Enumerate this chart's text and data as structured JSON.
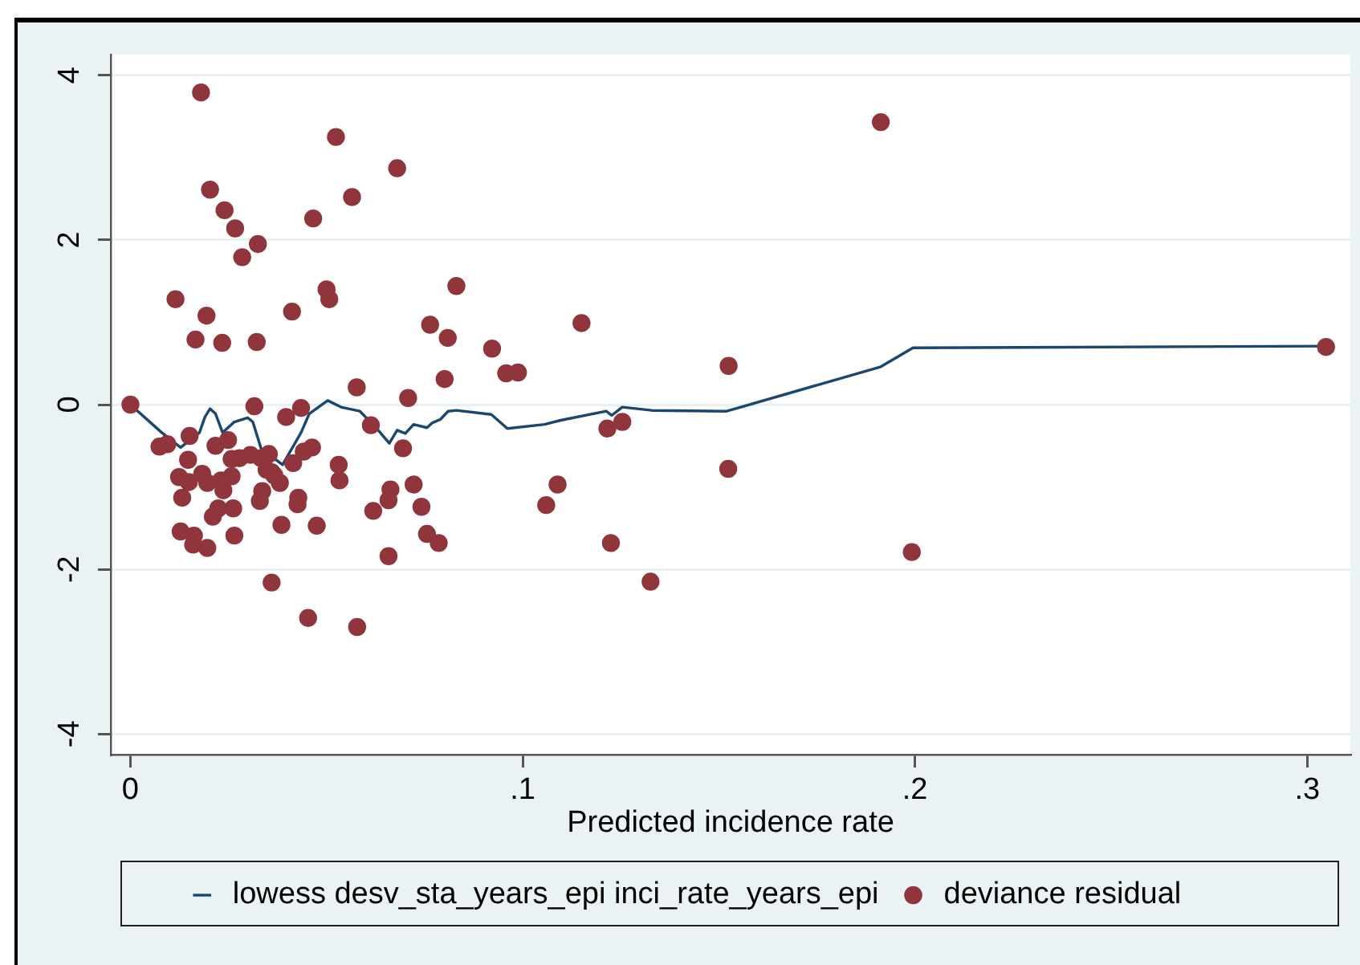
{
  "chart_data": {
    "type": "scatter",
    "xlabel": "Predicted incidence rate",
    "xlim": [
      -0.005,
      0.311
    ],
    "xticks": [
      0,
      {
        "value": 0.1,
        "label": ".1"
      },
      {
        "value": 0.2,
        "label": ".2"
      },
      {
        "value": 0.3,
        "label": ".3"
      }
    ],
    "ylim": [
      -4.25,
      4.25
    ],
    "yticks": [
      -4,
      -2,
      0,
      2,
      4
    ],
    "grid": "y",
    "legend": "bottom",
    "marker": "circle",
    "series": [
      {
        "name": "lowess desv_sta_years_epi inci_rate_years_epi",
        "type": "line",
        "marker": "none",
        "line_style": "solid",
        "color": "#1a476f",
        "x": [
          0,
          0.008,
          0.0128,
          0.0176,
          0.019,
          0.0203,
          0.0217,
          0.0235,
          0.0265,
          0.0299,
          0.0312,
          0.0333,
          0.036,
          0.0388,
          0.0435,
          0.0456,
          0.0503,
          0.0537,
          0.0585,
          0.0626,
          0.066,
          0.068,
          0.0701,
          0.0722,
          0.0756,
          0.077,
          0.079,
          0.081,
          0.0831,
          0.092,
          0.0961,
          0.1056,
          0.1097,
          0.1213,
          0.1227,
          0.1254,
          0.1329,
          0.152,
          0.1913,
          0.1995,
          0.3048
        ],
        "values": [
          0,
          -0.34,
          -0.52,
          -0.34,
          -0.15,
          -0.05,
          -0.11,
          -0.34,
          -0.21,
          -0.16,
          -0.21,
          -0.53,
          -0.63,
          -0.73,
          -0.34,
          -0.11,
          0.05,
          -0.03,
          -0.08,
          -0.28,
          -0.47,
          -0.31,
          -0.35,
          -0.24,
          -0.28,
          -0.22,
          -0.18,
          -0.08,
          -0.07,
          -0.12,
          -0.29,
          -0.24,
          -0.19,
          -0.08,
          -0.13,
          -0.03,
          -0.07,
          -0.08,
          0.46,
          0.69,
          0.71
        ]
      },
      {
        "name": "deviance residual",
        "type": "scatter",
        "color": "#90353b",
        "x": [
          0,
          0.018,
          0.0524,
          0.068,
          0.0203,
          0.024,
          0.0267,
          0.0325,
          0.0285,
          0.0466,
          0.0565,
          0.0115,
          0.05,
          0.0507,
          0.0194,
          0.0412,
          0.0166,
          0.0234,
          0.0322,
          0.0831,
          0.0764,
          0.0809,
          0.0922,
          0.0958,
          0.0988,
          0.115,
          0.0801,
          0.0708,
          0.0577,
          0.0316,
          0.1525,
          0.1913,
          0.3048,
          0.1992,
          0.1524,
          0.1326,
          0.1225,
          0.1216,
          0.1254,
          0.106,
          0.1089,
          0.0578,
          0.0453,
          0.036,
          0.0658,
          0.0756,
          0.0786,
          0.0742,
          0.0722,
          0.0663,
          0.0658,
          0.0695,
          0.0397,
          0.0435,
          0.0613,
          0.0074,
          0.0094,
          0.0151,
          0.0147,
          0.0217,
          0.0249,
          0.0258,
          0.0278,
          0.0306,
          0.0333,
          0.0353,
          0.0347,
          0.036,
          0.0381,
          0.0415,
          0.0442,
          0.0463,
          0.0531,
          0.0533,
          0.0124,
          0.0183,
          0.0149,
          0.0196,
          0.0231,
          0.0258,
          0.0237,
          0.0132,
          0.0336,
          0.033,
          0.0428,
          0.0426,
          0.0224,
          0.0262,
          0.021,
          0.0128,
          0.0162,
          0.016,
          0.0196,
          0.0265,
          0.0385,
          0.0475,
          0.0619,
          0.0367
        ],
        "values": [
          0,
          3.79,
          3.25,
          2.87,
          2.61,
          2.36,
          2.14,
          1.95,
          1.79,
          2.26,
          2.52,
          1.28,
          1.4,
          1.28,
          1.08,
          1.13,
          0.79,
          0.75,
          0.76,
          1.44,
          0.97,
          0.81,
          0.68,
          0.38,
          0.39,
          0.99,
          0.31,
          0.08,
          0.21,
          -0.02,
          0.47,
          3.43,
          0.7,
          -1.79,
          -0.78,
          -2.15,
          -1.68,
          -0.29,
          -0.21,
          -1.22,
          -0.97,
          -2.7,
          -2.59,
          -2.16,
          -1.84,
          -1.57,
          -1.68,
          -1.24,
          -0.97,
          -1.03,
          -1.16,
          -0.53,
          -0.15,
          -0.04,
          -0.25,
          -0.51,
          -0.48,
          -0.38,
          -0.67,
          -0.5,
          -0.43,
          -0.66,
          -0.65,
          -0.61,
          -0.65,
          -0.6,
          -0.79,
          -0.82,
          -0.95,
          -0.71,
          -0.57,
          -0.52,
          -0.73,
          -0.92,
          -0.88,
          -0.84,
          -0.94,
          -0.95,
          -0.92,
          -0.87,
          -1.04,
          -1.13,
          -1.05,
          -1.17,
          -1.13,
          -1.21,
          -1.26,
          -1.26,
          -1.36,
          -1.54,
          -1.59,
          -1.7,
          -1.74,
          -1.59,
          -1.46,
          -1.47,
          -1.29,
          -0.86
        ]
      }
    ]
  }
}
